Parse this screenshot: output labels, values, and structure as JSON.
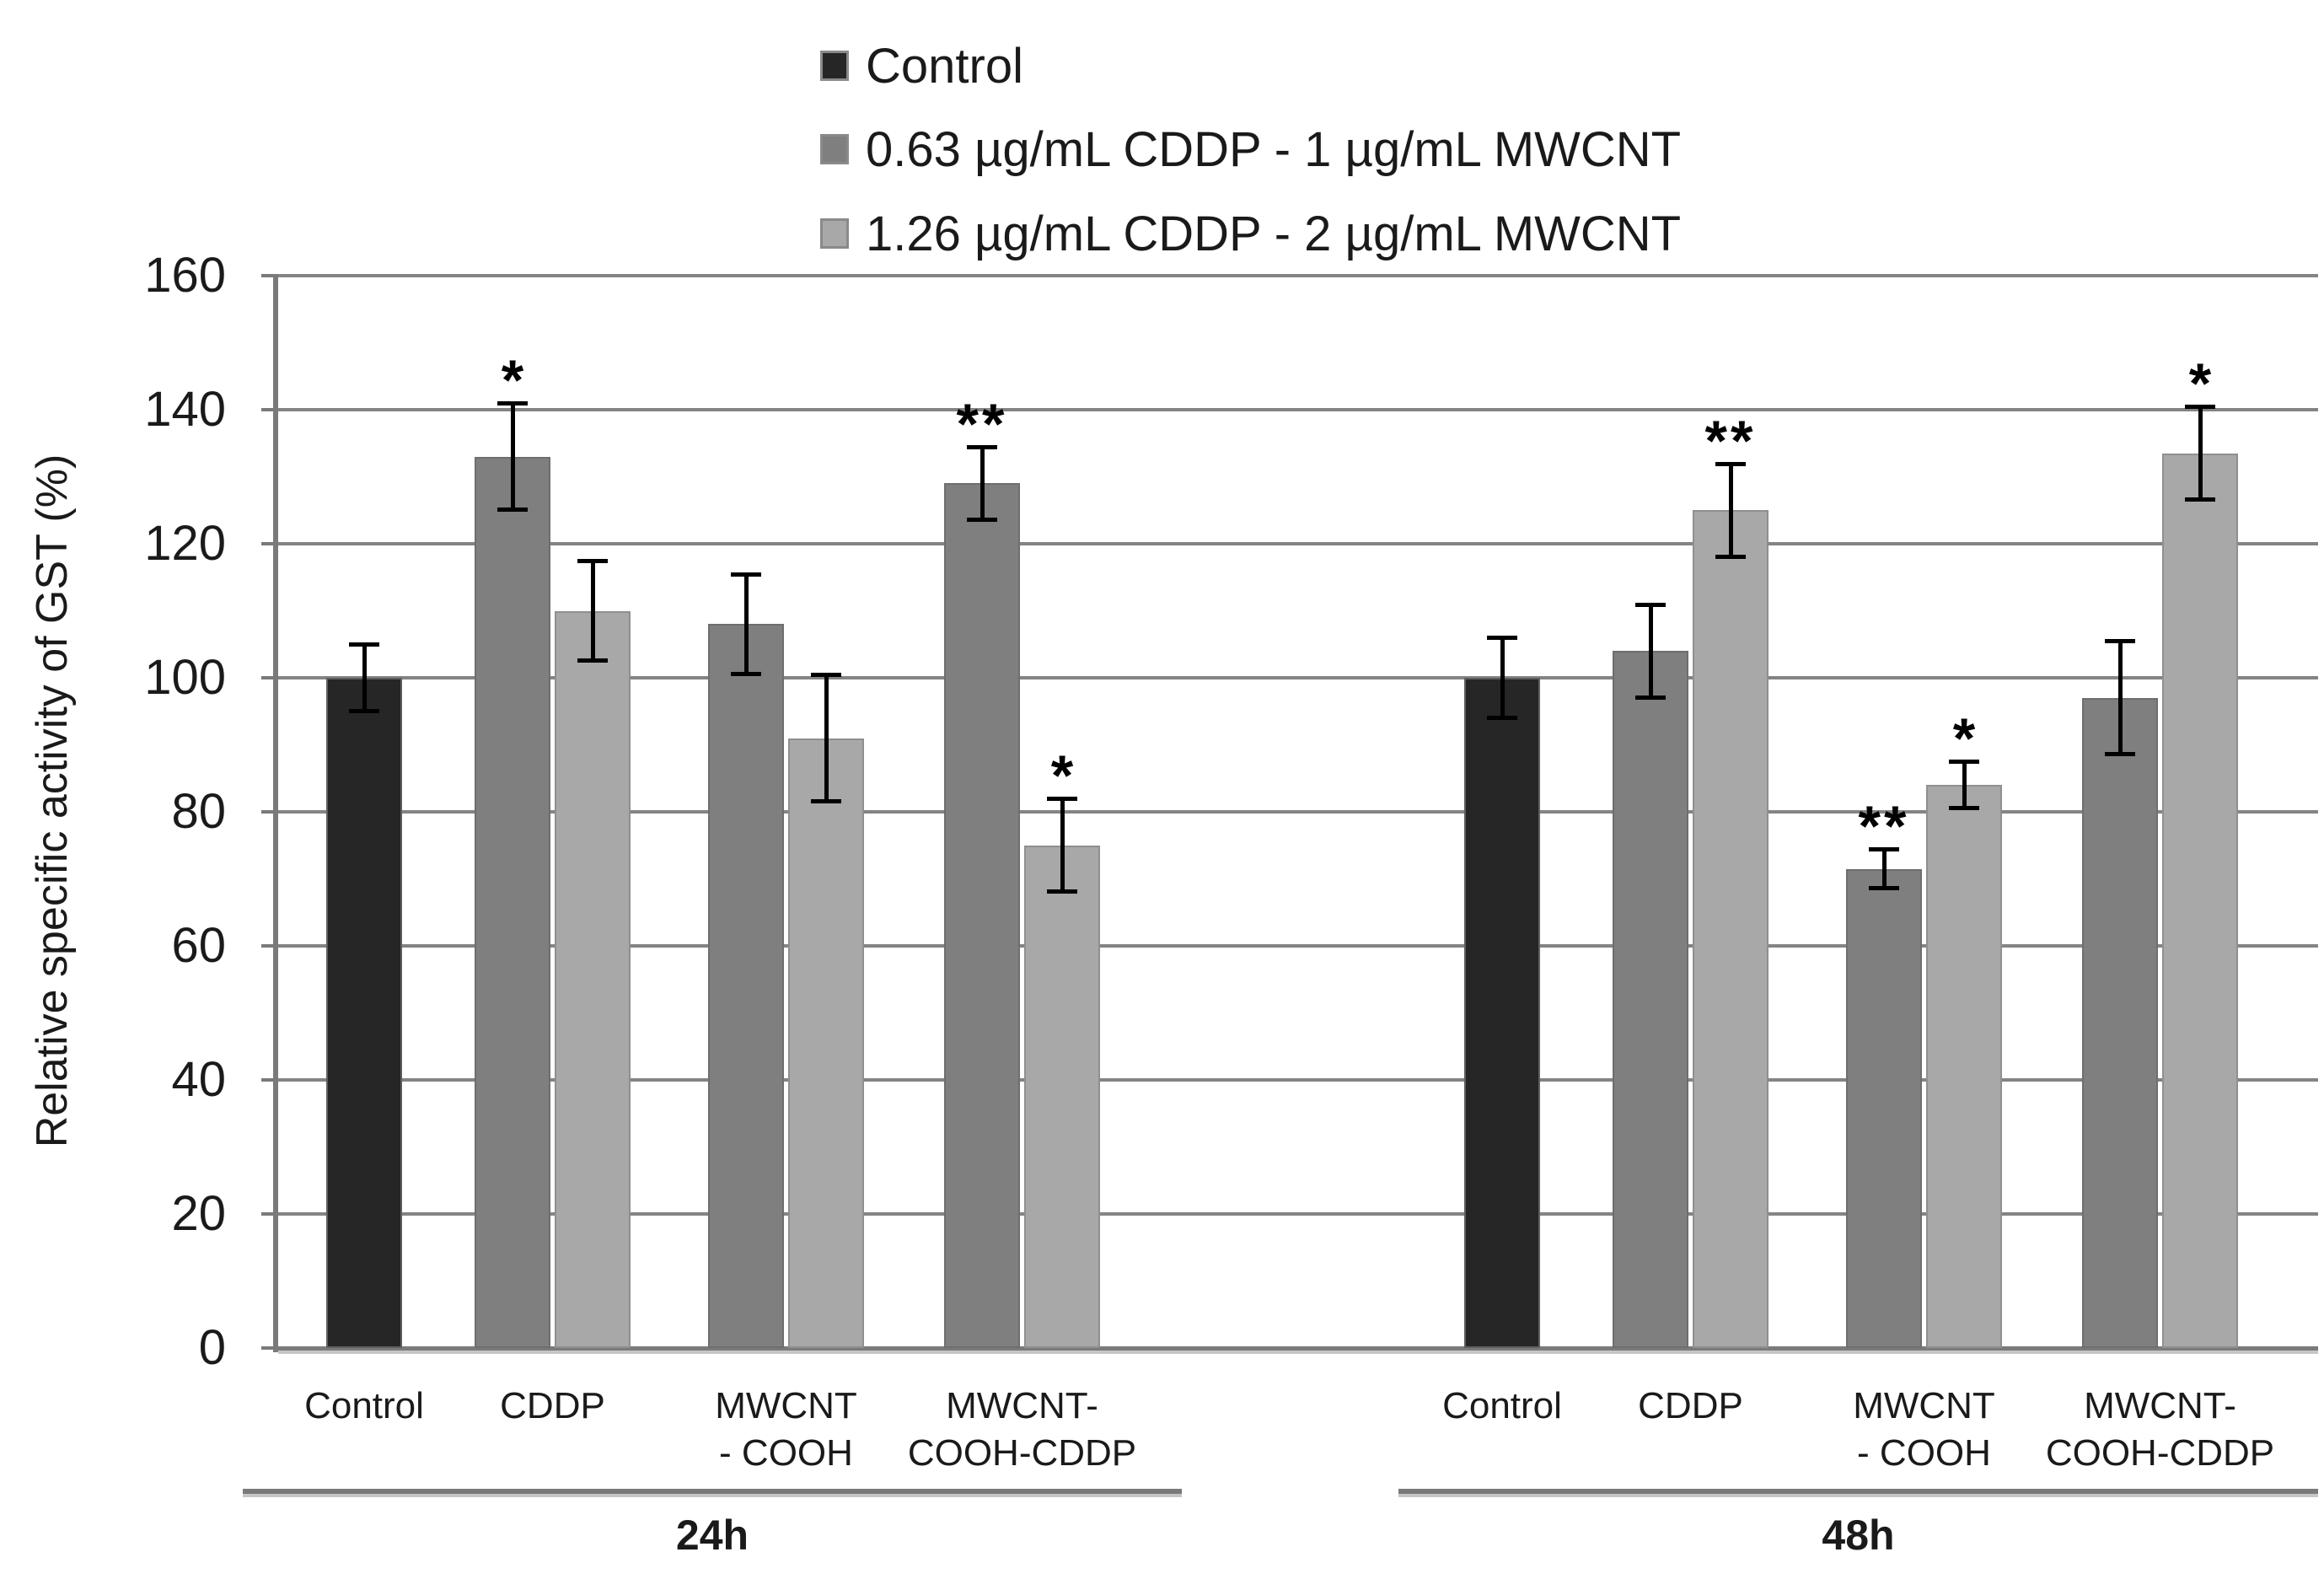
{
  "figure": {
    "y_axis_title": "Relative specific activity of GST (%)"
  },
  "colors": {
    "bar_control": "#262626",
    "bar_mid_dose": "#7f7f7f",
    "bar_high_dose": "#a8a8a8",
    "bar_border_control": "#5f5f5f",
    "bar_border_mid": "#6e6e6e",
    "bar_border_high": "#8f8f8f",
    "gridline": "#848484",
    "axis": "#7a7a7a",
    "error_bar": "#000000",
    "text": "#1a1a1a"
  },
  "chart_data": {
    "type": "bar",
    "title": "",
    "xlabel": "",
    "ylabel": "Relative specific activity of GST (%)",
    "ylim": [
      0,
      160
    ],
    "ytick_step": 20,
    "yticks": [
      0,
      20,
      40,
      60,
      80,
      100,
      120,
      140,
      160
    ],
    "grid": true,
    "legend_position": "top-center",
    "legend_items": [
      {
        "label": "Control",
        "color": "#262626"
      },
      {
        "label": "0.63 µg/mL CDDP - 1 µg/mL MWCNT",
        "color": "#7f7f7f"
      },
      {
        "label": "1.26 µg/mL CDDP - 2 µg/mL MWCNT",
        "color": "#a8a8a8"
      }
    ],
    "groups": [
      {
        "label": "24h",
        "categories": [
          {
            "label_lines": [
              "Control"
            ],
            "bars": [
              {
                "series": 0,
                "value": 100,
                "error": 5,
                "sig": ""
              }
            ]
          },
          {
            "label_lines": [
              "CDDP"
            ],
            "bars": [
              {
                "series": 1,
                "value": 133,
                "error": 8,
                "sig": "*"
              },
              {
                "series": 2,
                "value": 110,
                "error": 7.5,
                "sig": ""
              }
            ]
          },
          {
            "label_lines": [
              "MWCNT",
              "- COOH"
            ],
            "bars": [
              {
                "series": 1,
                "value": 108,
                "error": 7.5,
                "sig": ""
              },
              {
                "series": 2,
                "value": 91,
                "error": 9.5,
                "sig": ""
              }
            ]
          },
          {
            "label_lines": [
              "MWCNT-",
              "COOH-CDDP"
            ],
            "bars": [
              {
                "series": 1,
                "value": 129,
                "error": 5.5,
                "sig": "**"
              },
              {
                "series": 2,
                "value": 75,
                "error": 7,
                "sig": "*"
              }
            ]
          }
        ]
      },
      {
        "label": "48h",
        "categories": [
          {
            "label_lines": [
              "Control"
            ],
            "bars": [
              {
                "series": 0,
                "value": 100,
                "error": 6,
                "sig": ""
              }
            ]
          },
          {
            "label_lines": [
              "CDDP"
            ],
            "bars": [
              {
                "series": 1,
                "value": 104,
                "error": 7,
                "sig": ""
              },
              {
                "series": 2,
                "value": 125,
                "error": 7,
                "sig": "**"
              }
            ]
          },
          {
            "label_lines": [
              "MWCNT",
              "- COOH"
            ],
            "bars": [
              {
                "series": 1,
                "value": 71.5,
                "error": 3,
                "sig": "**"
              },
              {
                "series": 2,
                "value": 84,
                "error": 3.5,
                "sig": "*"
              }
            ]
          },
          {
            "label_lines": [
              "MWCNT-",
              "COOH-CDDP"
            ],
            "bars": [
              {
                "series": 1,
                "value": 97,
                "error": 8.5,
                "sig": ""
              },
              {
                "series": 2,
                "value": 133.5,
                "error": 7,
                "sig": "*"
              }
            ]
          }
        ]
      }
    ]
  }
}
